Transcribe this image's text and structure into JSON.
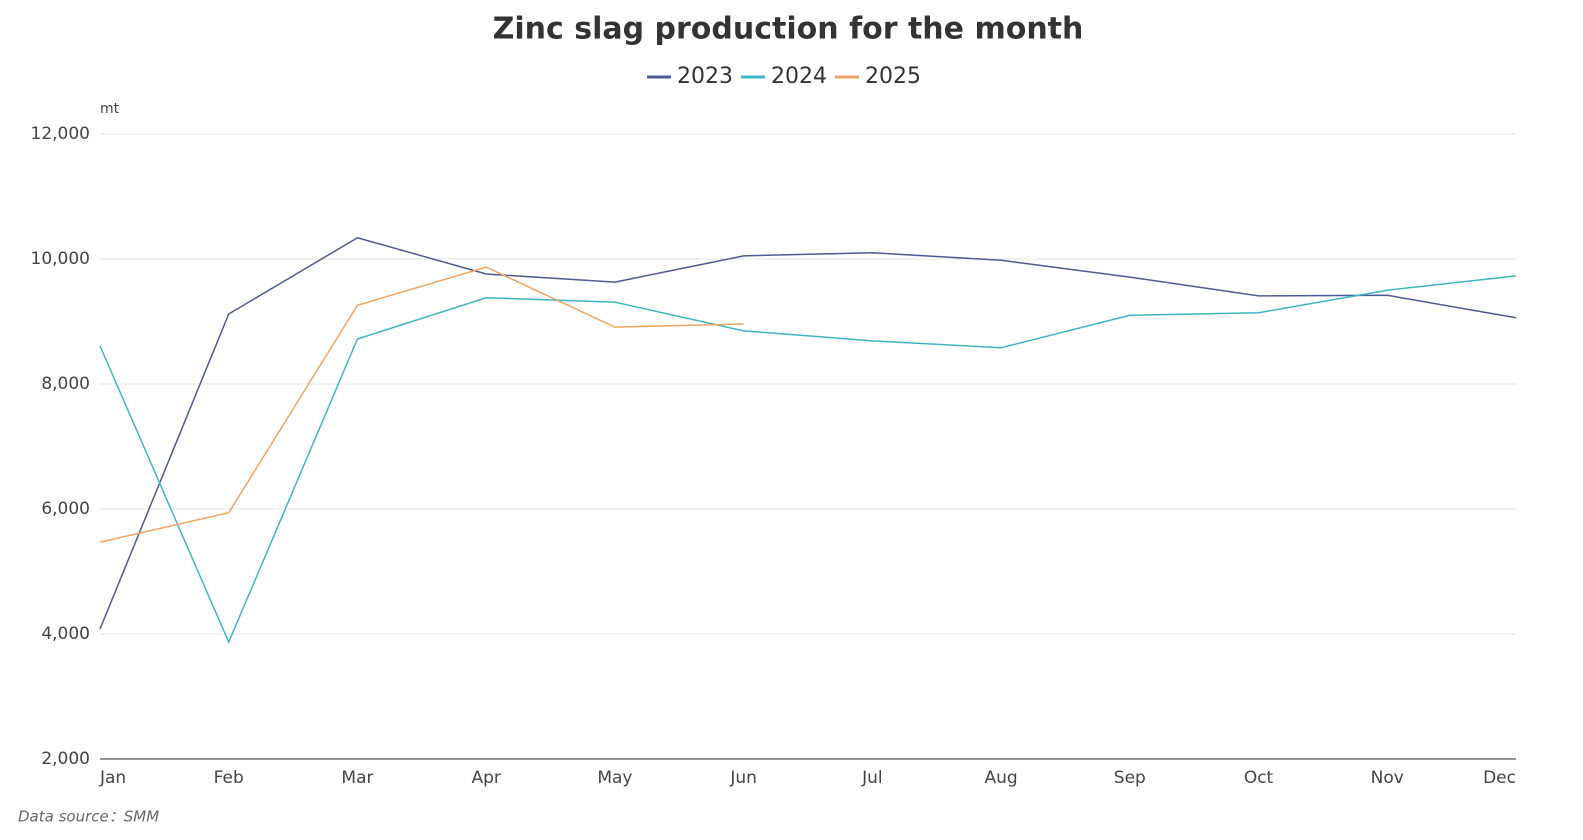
{
  "chart_data": {
    "type": "line",
    "title": "Zinc slag production for the month",
    "y_unit": "mt",
    "source": "Data source：SMM",
    "categories": [
      "Jan",
      "Feb",
      "Mar",
      "Apr",
      "May",
      "Jun",
      "Jul",
      "Aug",
      "Sep",
      "Oct",
      "Nov",
      "Dec"
    ],
    "series": [
      {
        "name": "2023",
        "color": "#4e5a93",
        "values": [
          4080,
          9120,
          10340,
          9760,
          9630,
          10050,
          10100,
          9980,
          9710,
          9410,
          9420,
          9060
        ]
      },
      {
        "name": "2024",
        "color": "#3fb5c4",
        "values": [
          8610,
          3870,
          8720,
          9380,
          9310,
          8850,
          8690,
          8580,
          9100,
          9140,
          9500,
          9730
        ]
      },
      {
        "name": "2025",
        "color": "#f0a35e",
        "values": [
          5470,
          5940,
          9260,
          9870,
          8910,
          8960,
          null,
          null,
          null,
          null,
          null,
          null
        ]
      }
    ],
    "ylim": [
      2000,
      12000
    ],
    "yticks": [
      {
        "value": 2000,
        "label": "2,000"
      },
      {
        "value": 4000,
        "label": "4,000"
      },
      {
        "value": 6000,
        "label": "6,000"
      },
      {
        "value": 8000,
        "label": "8,000"
      },
      {
        "value": 10000,
        "label": "10,000"
      },
      {
        "value": 12000,
        "label": "12,000"
      }
    ],
    "grid": true,
    "legend": "top"
  }
}
